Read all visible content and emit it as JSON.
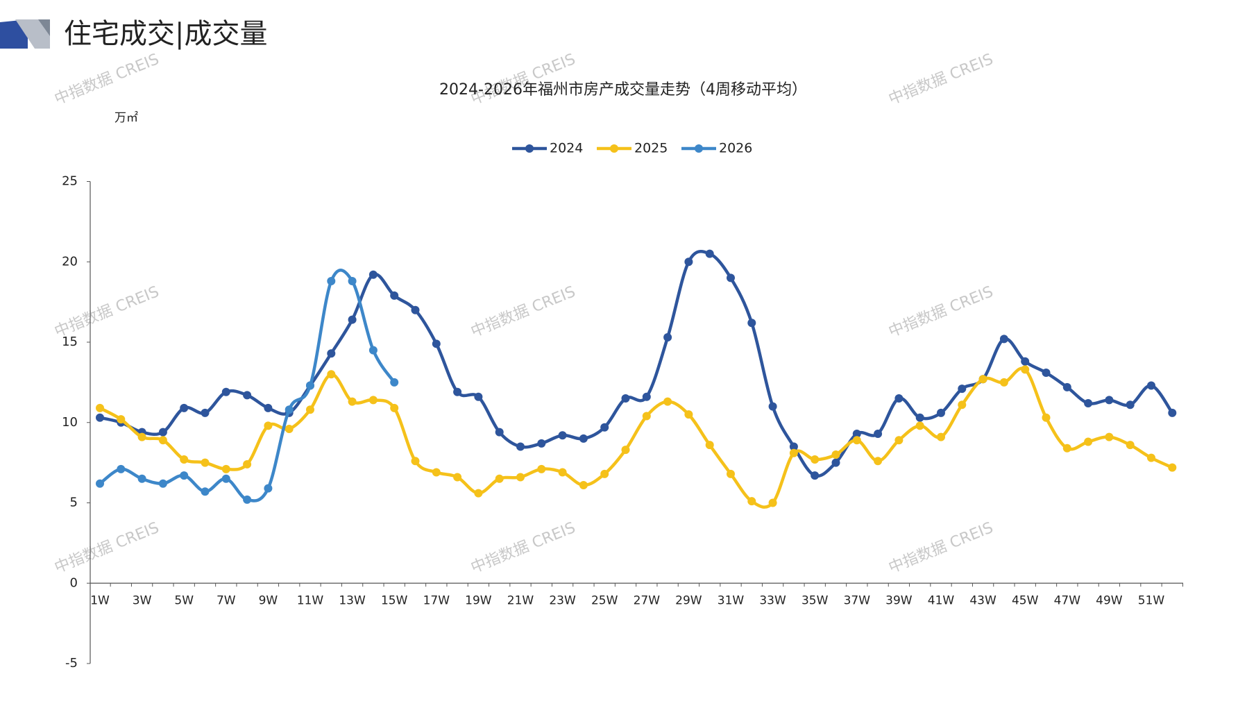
{
  "header": {
    "title": "住宅成交|成交量"
  },
  "watermark": "中指数据 CREIS",
  "chart_data": {
    "type": "line",
    "title": "2024-2026年福州市房产成交量走势（4周移动平均）",
    "y_label": "万㎡",
    "categories": [
      "1W",
      null,
      "3W",
      null,
      "5W",
      null,
      "7W",
      null,
      "9W",
      null,
      "11W",
      null,
      "13W",
      null,
      "15W",
      null,
      "17W",
      null,
      "19W",
      null,
      "21W",
      null,
      "23W",
      null,
      "25W",
      null,
      "27W",
      null,
      "29W",
      null,
      "31W",
      null,
      "33W",
      null,
      "35W",
      null,
      "37W",
      null,
      "39W",
      null,
      "41W",
      null,
      "43W",
      null,
      "45W",
      null,
      "47W",
      null,
      "49W",
      null,
      "51W",
      null
    ],
    "series": [
      {
        "name": "2024",
        "color": "#2e559c",
        "values": [
          10.3,
          10.0,
          9.4,
          9.4,
          10.9,
          10.6,
          11.9,
          11.7,
          10.9,
          10.6,
          12.3,
          14.3,
          16.4,
          19.2,
          17.9,
          17.0,
          14.9,
          11.9,
          11.6,
          9.4,
          8.5,
          8.7,
          9.2,
          9.0,
          9.7,
          11.5,
          11.6,
          15.3,
          20.0,
          20.5,
          19.0,
          16.2,
          11.0,
          8.5,
          6.7,
          7.5,
          9.3,
          9.3,
          11.5,
          10.3,
          10.6,
          12.1,
          12.7,
          15.2,
          13.8,
          13.1,
          12.2,
          11.2,
          11.4,
          11.1,
          12.3,
          10.6
        ]
      },
      {
        "name": "2025",
        "color": "#f5c11a",
        "values": [
          10.9,
          10.2,
          9.1,
          8.9,
          7.7,
          7.5,
          7.1,
          7.4,
          9.8,
          9.6,
          10.8,
          13.0,
          11.3,
          11.4,
          10.9,
          7.6,
          6.9,
          6.6,
          5.6,
          6.5,
          6.6,
          7.1,
          6.9,
          6.1,
          6.8,
          8.3,
          10.4,
          11.3,
          10.5,
          8.6,
          6.8,
          5.1,
          5.0,
          8.1,
          7.7,
          8.0,
          8.9,
          7.6,
          8.9,
          9.8,
          9.1,
          11.1,
          12.7,
          12.5,
          13.3,
          10.3,
          8.4,
          8.8,
          9.1,
          8.6,
          7.8,
          7.2
        ]
      },
      {
        "name": "2026",
        "color": "#3d87c9",
        "values": [
          6.2,
          7.1,
          6.5,
          6.2,
          6.7,
          5.7,
          6.5,
          5.2,
          5.9,
          10.8,
          12.3,
          18.8,
          18.8,
          14.5,
          12.5,
          null,
          null,
          null,
          null,
          null,
          null,
          null,
          null,
          null,
          null,
          null,
          null,
          null,
          null,
          null,
          null,
          null,
          null,
          null,
          null,
          null,
          null,
          null,
          null,
          null,
          null,
          null,
          null,
          null,
          null,
          null,
          null,
          null,
          null,
          null,
          null,
          null
        ]
      }
    ],
    "ylim": [
      -5,
      25
    ],
    "yticks": [
      -5,
      0,
      5,
      10,
      15,
      20,
      25
    ],
    "legend": "top"
  }
}
